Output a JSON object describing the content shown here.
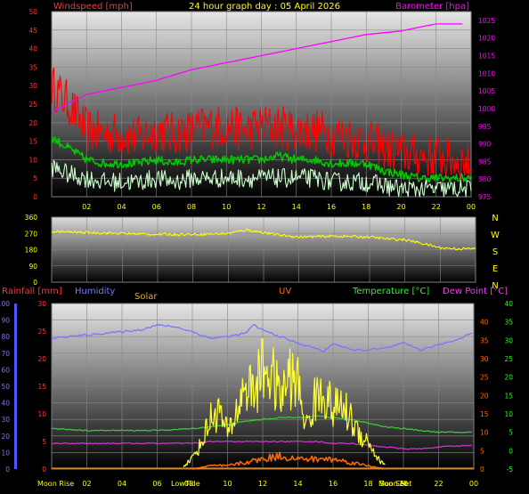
{
  "chart_data": [
    {
      "type": "line",
      "title": "24 hour graph day : 05 April 2026",
      "left_axis_label": "Windspeed [mph]",
      "right_axis_label": "Barometer [hpa]",
      "x_ticks": [
        "02",
        "04",
        "06",
        "08",
        "10",
        "12",
        "14",
        "16",
        "18",
        "20",
        "22",
        "00"
      ],
      "left_ticks": [
        0,
        5,
        10,
        15,
        20,
        25,
        30,
        35,
        40,
        45,
        50
      ],
      "right_ticks": [
        975,
        980,
        985,
        990,
        995,
        1000,
        1005,
        1010,
        1015,
        1020,
        1025
      ],
      "ylim_left": [
        0,
        50
      ],
      "ylim_right": [
        975,
        1027.5
      ],
      "grid": true,
      "colors": {
        "gust": "#ff0000",
        "average": "#00cc00",
        "windspeed": "#ccffcc",
        "barometer": "#ff00ff",
        "label_left": "#ff3333",
        "label_right": "#ff00ff",
        "title": "#ffff00"
      },
      "series": [
        {
          "role": "gust",
          "x": [
            0,
            1,
            2,
            3,
            4,
            5,
            6,
            7,
            8,
            9,
            10,
            11,
            12,
            13,
            14,
            15,
            16,
            17,
            18,
            19,
            20,
            21,
            22,
            23,
            24
          ],
          "y": [
            30,
            25,
            18,
            17,
            17,
            16,
            18,
            17,
            18,
            19,
            19,
            18,
            19,
            19,
            18,
            18,
            17,
            16,
            15,
            13,
            12,
            11,
            11,
            10,
            9
          ]
        },
        {
          "role": "average",
          "x": [
            0,
            1,
            2,
            3,
            4,
            5,
            6,
            7,
            8,
            9,
            10,
            11,
            12,
            13,
            14,
            15,
            16,
            17,
            18,
            19,
            20,
            21,
            22,
            23,
            24
          ],
          "y": [
            16,
            13,
            10,
            9,
            9,
            9,
            10,
            9,
            10,
            10,
            10,
            10,
            10,
            11,
            10,
            10,
            9,
            9,
            9,
            7,
            6,
            5,
            5,
            5,
            5
          ]
        },
        {
          "role": "windspeed",
          "x": [
            0,
            1,
            2,
            3,
            4,
            5,
            6,
            7,
            8,
            9,
            10,
            11,
            12,
            13,
            14,
            15,
            16,
            17,
            18,
            19,
            20,
            21,
            22,
            23,
            24
          ],
          "y": [
            8,
            6,
            5,
            4,
            4,
            4,
            5,
            4,
            5,
            5,
            5,
            5,
            5,
            5,
            5,
            5,
            4,
            4,
            4,
            3,
            2,
            2,
            2,
            2,
            2
          ]
        },
        {
          "role": "barometer",
          "x": [
            0,
            2,
            4,
            6,
            8,
            10,
            12,
            14,
            16,
            18,
            20,
            22,
            23.5
          ],
          "y": [
            999,
            1004,
            1006,
            1008,
            1011,
            1013,
            1015,
            1017,
            1019,
            1021,
            1022,
            1024,
            1024
          ]
        }
      ]
    },
    {
      "type": "line",
      "left_ticks": [
        0,
        90,
        180,
        270,
        360
      ],
      "right_labels": [
        "N",
        "W",
        "S",
        "E",
        "N"
      ],
      "ylim": [
        0,
        360
      ],
      "grid": true,
      "colors": {
        "direction": "#ffff00",
        "compass_label": "#ffff00"
      },
      "series": [
        {
          "role": "wind-direction",
          "x": [
            0,
            2,
            4,
            6,
            8,
            10,
            11,
            12,
            13,
            14,
            16,
            18,
            19,
            20,
            21,
            22,
            23,
            24
          ],
          "y": [
            280,
            275,
            270,
            265,
            265,
            270,
            290,
            275,
            260,
            250,
            255,
            250,
            240,
            235,
            215,
            190,
            185,
            185
          ]
        }
      ]
    },
    {
      "type": "line",
      "labels": {
        "rainfall": "Rainfall [mm]",
        "humidity": "Humidity",
        "solar": "Solar",
        "uv": "UV",
        "temperature": "Temperature [°C]",
        "dewpoint": "Dew Point [°C]"
      },
      "x_ticks": [
        "02",
        "04",
        "06",
        "08",
        "10",
        "12",
        "14",
        "16",
        "18",
        "20",
        "22",
        "00"
      ],
      "humidity_ticks": [
        0,
        10,
        20,
        30,
        40,
        50,
        60,
        70,
        80,
        90,
        100
      ],
      "rain_ticks": [
        0,
        5,
        10,
        15,
        20,
        25,
        30
      ],
      "uv_ticks": [
        0,
        5,
        10,
        15,
        20,
        25,
        30,
        35,
        40
      ],
      "temp_ticks": [
        -5,
        0,
        5,
        10,
        15,
        20,
        25,
        30,
        35,
        40
      ],
      "ylim_humidity": [
        0,
        100
      ],
      "ylim_rain": [
        0,
        30
      ],
      "ylim_temp": [
        -5,
        40
      ],
      "annotations": {
        "moon_rise": "Moon Rise",
        "low_tide": "LowTide",
        "moon_set": "Moon Set",
        "sun_rise": "08",
        "sun_set": "Sun Set"
      },
      "grid": true,
      "colors": {
        "humidity": "#7777ff",
        "rainfall_label": "#ff3333",
        "solar": "#ffff33",
        "solar_label": "#ddaa44",
        "uv_label": "#ff6600",
        "temperature": "#33cc33",
        "dewpoint": "#cc33cc",
        "uv": "#ff6600",
        "temp_label": "#33ee33",
        "dew_label": "#ff33ff"
      },
      "series": [
        {
          "role": "humidity",
          "x": [
            0,
            2,
            4,
            5,
            6,
            7,
            8,
            8.5,
            9,
            10,
            11,
            11.5,
            12,
            13,
            14,
            15,
            15.5,
            16,
            17,
            18,
            19,
            20,
            21,
            22,
            23,
            24
          ],
          "y": [
            79,
            81,
            83,
            84,
            87,
            86,
            83,
            81,
            79,
            80,
            82,
            87,
            84,
            80,
            76,
            73,
            71,
            76,
            72,
            72,
            73,
            76,
            72,
            75,
            78,
            83
          ]
        },
        {
          "role": "temperature",
          "x": [
            0,
            2,
            4,
            6,
            8,
            9,
            10,
            11,
            12,
            13,
            14,
            15,
            16,
            17,
            18,
            19,
            20,
            21,
            22,
            24
          ],
          "y": [
            6,
            5.5,
            5.5,
            5.5,
            6,
            6.5,
            7,
            8,
            8.5,
            9,
            9,
            9.5,
            9,
            8.5,
            7.5,
            6.5,
            6,
            5.5,
            5,
            5
          ]
        },
        {
          "role": "dewpoint",
          "x": [
            0,
            2,
            4,
            6,
            8,
            9,
            10,
            11,
            12,
            13,
            14,
            15,
            16,
            17,
            18,
            19,
            20,
            21,
            22,
            24
          ],
          "y": [
            2,
            2,
            2,
            2,
            2,
            2.5,
            2.5,
            2.5,
            2.5,
            2.5,
            2.5,
            2.5,
            2,
            2,
            1.5,
            1,
            0.5,
            0.5,
            1,
            1.5
          ]
        },
        {
          "role": "solar",
          "x": [
            7.5,
            8,
            8.5,
            9,
            9.5,
            10,
            10.5,
            11,
            11.5,
            12,
            12.5,
            13,
            13.5,
            14,
            14.5,
            15,
            15.5,
            16,
            16.5,
            17,
            17.5,
            18,
            18.5,
            19
          ],
          "y": [
            2,
            8,
            18,
            35,
            42,
            25,
            40,
            60,
            55,
            72,
            68,
            50,
            66,
            60,
            30,
            50,
            55,
            42,
            45,
            36,
            25,
            20,
            8,
            2
          ]
        },
        {
          "role": "uv",
          "x": [
            8,
            9,
            10,
            11,
            12,
            13,
            14,
            15,
            16,
            17,
            18,
            19
          ],
          "y": [
            0,
            1,
            1,
            2,
            3,
            4,
            3,
            3,
            3,
            2,
            1,
            0
          ]
        }
      ]
    }
  ]
}
